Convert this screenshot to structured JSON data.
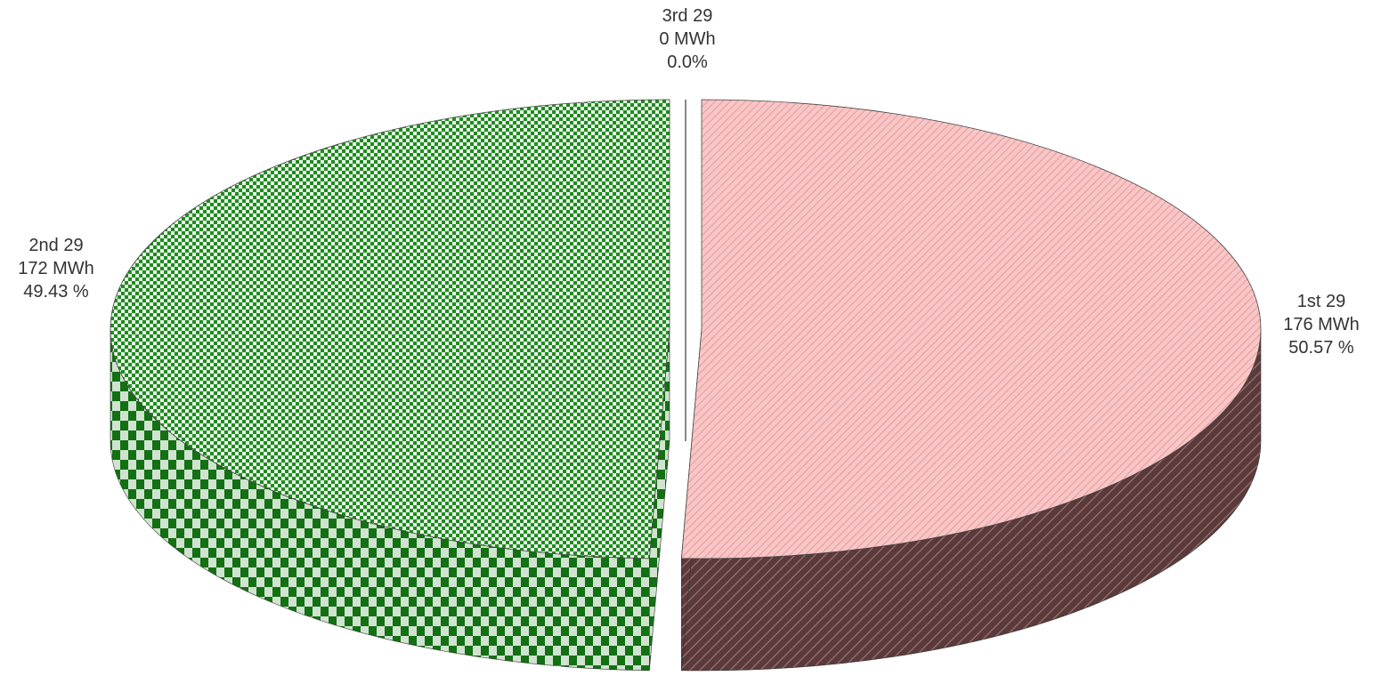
{
  "chart_data": {
    "type": "pie",
    "style": "3d-exploded",
    "unit": "MWh",
    "slices": [
      {
        "name": "1st 29",
        "value": 176,
        "value_label": "176 MWh",
        "percent": 50.57,
        "percent_label": "50.57 %",
        "top_color": "#f6b8b8",
        "side_color": "#6e4a4a",
        "pattern": "diagonal-hatch"
      },
      {
        "name": "2nd 29",
        "value": 172,
        "value_label": "172 MWh",
        "percent": 49.43,
        "percent_label": "49.43 %",
        "top_color": "#1e8c1e",
        "side_color": "#137013",
        "pattern": "checkerboard"
      },
      {
        "name": "3rd 29",
        "value": 0,
        "value_label": "0 MWh",
        "percent": 0.0,
        "percent_label": "0.0%",
        "top_color": "#888888",
        "side_color": "#666666",
        "pattern": "none"
      }
    ],
    "legend": "none"
  }
}
